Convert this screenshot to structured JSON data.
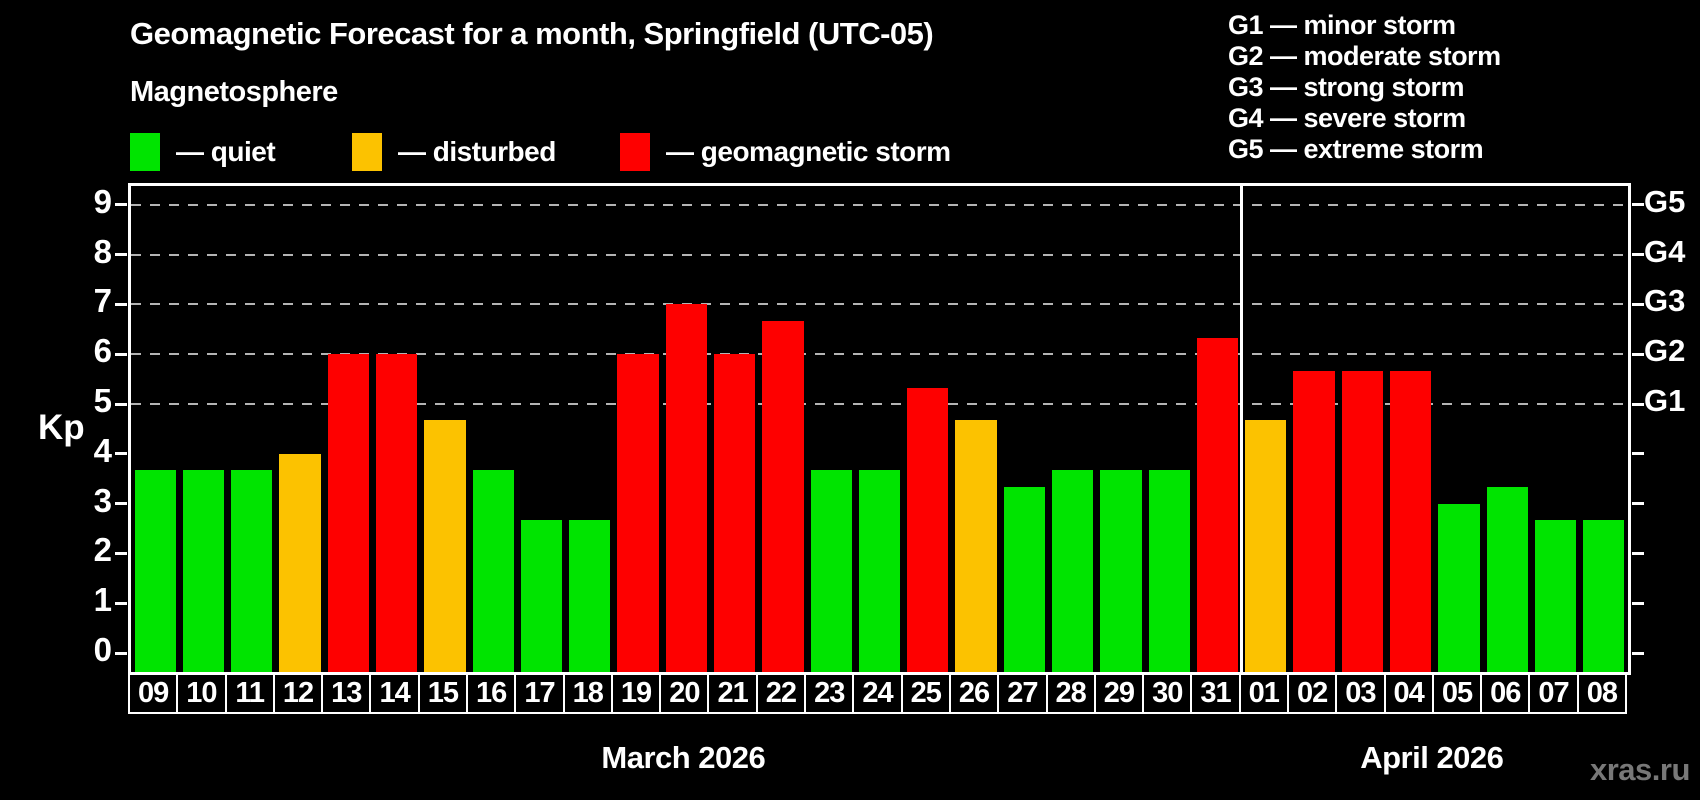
{
  "title": "Geomagnetic Forecast for a month, Springfield (UTC-05)",
  "legend": {
    "heading": "Magnetosphere",
    "items": [
      {
        "key": "quiet",
        "label": "— quiet",
        "color": "#00e400"
      },
      {
        "key": "disturbed",
        "label": "— disturbed",
        "color": "#fcc200"
      },
      {
        "key": "storm",
        "label": "— geomagnetic storm",
        "color": "#fe0000"
      }
    ]
  },
  "g_scale_legend": {
    "lines": [
      "G1 — minor storm",
      "G2 — moderate storm",
      "G3 — strong storm",
      "G4 — severe storm",
      "G5 — extreme storm"
    ]
  },
  "watermark": "xras.ru",
  "chart_data": {
    "type": "bar",
    "ylabel": "Kp",
    "ylim": [
      -0.38,
      9.38
    ],
    "grid": "dashed horizontal lines at G-levels only",
    "y_ticks": [
      0,
      1,
      2,
      3,
      4,
      5,
      6,
      7,
      8,
      9
    ],
    "g_levels": [
      {
        "label": "G1",
        "kp": 5
      },
      {
        "label": "G2",
        "kp": 6
      },
      {
        "label": "G3",
        "kp": 7
      },
      {
        "label": "G4",
        "kp": 8
      },
      {
        "label": "G5",
        "kp": 9
      }
    ],
    "months": [
      {
        "label": "March 2026",
        "days": 23
      },
      {
        "label": "April 2026",
        "days": 8
      }
    ],
    "categories": [
      "09",
      "10",
      "11",
      "12",
      "13",
      "14",
      "15",
      "16",
      "17",
      "18",
      "19",
      "20",
      "21",
      "22",
      "23",
      "24",
      "25",
      "26",
      "27",
      "28",
      "29",
      "30",
      "31",
      "01",
      "02",
      "03",
      "04",
      "05",
      "06",
      "07",
      "08"
    ],
    "values": [
      3.67,
      3.67,
      3.67,
      4.0,
      6.0,
      6.0,
      4.67,
      3.67,
      2.67,
      2.67,
      6.0,
      7.0,
      6.0,
      6.67,
      3.67,
      3.67,
      5.33,
      4.67,
      3.33,
      3.67,
      3.67,
      3.67,
      6.33,
      4.67,
      5.67,
      5.67,
      5.67,
      3.0,
      3.33,
      2.67,
      2.67
    ],
    "statuses": [
      "quiet",
      "quiet",
      "quiet",
      "disturbed",
      "storm",
      "storm",
      "disturbed",
      "quiet",
      "quiet",
      "quiet",
      "storm",
      "storm",
      "storm",
      "storm",
      "quiet",
      "quiet",
      "storm",
      "disturbed",
      "quiet",
      "quiet",
      "quiet",
      "quiet",
      "storm",
      "disturbed",
      "storm",
      "storm",
      "storm",
      "quiet",
      "quiet",
      "quiet",
      "quiet"
    ]
  }
}
